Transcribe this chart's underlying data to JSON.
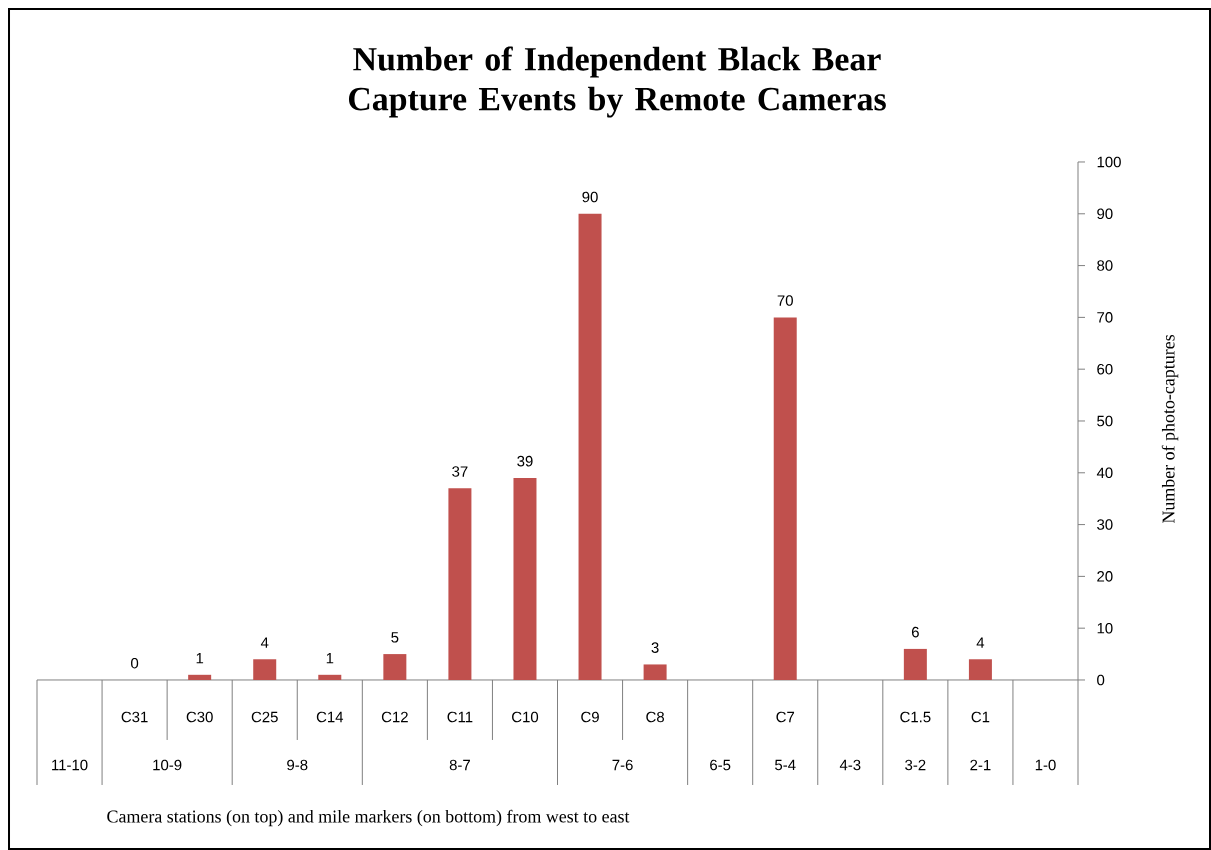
{
  "chart_data": {
    "type": "bar",
    "title": "Number of Independent Black Bear Capture Events by Remote Cameras",
    "xlabel": "Camera stations (on top) and mile markers (on bottom) from west to east",
    "ylabel": "Number of photo-captures",
    "categories": [
      null,
      "C31",
      "C30",
      "C25",
      "C14",
      "C12",
      "C11",
      "C10",
      "C9",
      "C8",
      null,
      "C7",
      null,
      "C1.5",
      "C1",
      null
    ],
    "values": [
      null,
      0,
      1,
      4,
      1,
      5,
      37,
      39,
      90,
      3,
      null,
      70,
      null,
      6,
      4,
      null
    ],
    "color": "#c0504d",
    "ylim": [
      0,
      100
    ],
    "yticks": [
      0,
      10,
      20,
      30,
      40,
      50,
      60,
      70,
      80,
      90,
      100
    ],
    "data_labels": true,
    "annotations": [
      "11-10",
      "10-9",
      "9-8",
      "8-7",
      "7-6",
      "6-5",
      "5-4",
      "4-3",
      "3-2",
      "2-1",
      "1-0"
    ]
  }
}
